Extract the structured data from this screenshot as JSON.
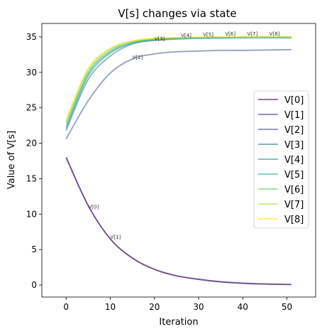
{
  "chart_data": {
    "type": "line",
    "title": "V[s] changes via state",
    "xlabel": "Iteration",
    "ylabel": "Value of V[s]",
    "xlim": [
      -5.5,
      56.5
    ],
    "ylim": [
      -1.7,
      36.9
    ],
    "xticks": [
      0,
      10,
      20,
      30,
      40,
      50
    ],
    "yticks": [
      0,
      5,
      10,
      15,
      20,
      25,
      30,
      35
    ],
    "x": [
      0,
      5,
      10,
      15,
      20,
      25,
      30,
      35,
      40,
      45,
      51
    ],
    "series": [
      {
        "name": "V[0]",
        "color": "#440154",
        "values": [
          18.0,
          11.2,
          6.5,
          3.8,
          2.2,
          1.3,
          0.8,
          0.45,
          0.25,
          0.14,
          0.07
        ]
      },
      {
        "name": "V[1]",
        "color": "#472d7b",
        "values": [
          18.0,
          11.2,
          6.5,
          3.8,
          2.2,
          1.3,
          0.8,
          0.45,
          0.25,
          0.14,
          0.07
        ]
      },
      {
        "name": "V[2]",
        "color": "#3b528b",
        "values": [
          20.6,
          26.0,
          29.9,
          31.9,
          32.6,
          32.9,
          33.0,
          33.1,
          33.1,
          33.15,
          33.2
        ]
      },
      {
        "name": "V[3]",
        "color": "#2c728e",
        "values": [
          21.8,
          29.0,
          32.3,
          34.0,
          34.5,
          34.7,
          34.8,
          34.85,
          34.9,
          34.9,
          34.9
        ]
      },
      {
        "name": "V[4]",
        "color": "#21918c",
        "values": [
          22.1,
          29.5,
          32.7,
          34.1,
          34.6,
          34.8,
          34.85,
          34.9,
          34.9,
          34.9,
          34.9
        ]
      },
      {
        "name": "V[5]",
        "color": "#28ae80",
        "values": [
          22.4,
          29.8,
          32.9,
          34.2,
          34.65,
          34.8,
          34.85,
          34.9,
          34.9,
          34.95,
          34.95
        ]
      },
      {
        "name": "V[6]",
        "color": "#5ec962",
        "values": [
          22.8,
          30.1,
          33.1,
          34.3,
          34.7,
          34.85,
          34.9,
          34.95,
          34.95,
          35.0,
          35.0
        ]
      },
      {
        "name": "V[7]",
        "color": "#addc30",
        "values": [
          23.1,
          30.4,
          33.3,
          34.4,
          34.75,
          34.9,
          34.95,
          35.0,
          35.0,
          35.0,
          35.0
        ]
      },
      {
        "name": "V[8]",
        "color": "#fde725",
        "values": [
          23.3,
          30.6,
          33.4,
          34.45,
          34.8,
          34.9,
          34.95,
          35.0,
          35.0,
          35.0,
          35.0
        ]
      }
    ],
    "annotations": [
      {
        "text": "V[0]",
        "x": 5,
        "y": 10.8
      },
      {
        "text": "V[1]",
        "x": 10,
        "y": 6.5
      },
      {
        "text": "V[2]",
        "x": 15,
        "y": 31.9
      },
      {
        "text": "V[3]",
        "x": 20,
        "y": 34.5
      },
      {
        "text": "V[4]",
        "x": 26,
        "y": 35.0
      },
      {
        "text": "V[5]",
        "x": 31,
        "y": 35.1
      },
      {
        "text": "V[6]",
        "x": 36,
        "y": 35.2
      },
      {
        "text": "V[7]",
        "x": 41,
        "y": 35.2
      },
      {
        "text": "V[8]",
        "x": 46,
        "y": 35.2
      }
    ],
    "legend_position": "right"
  }
}
